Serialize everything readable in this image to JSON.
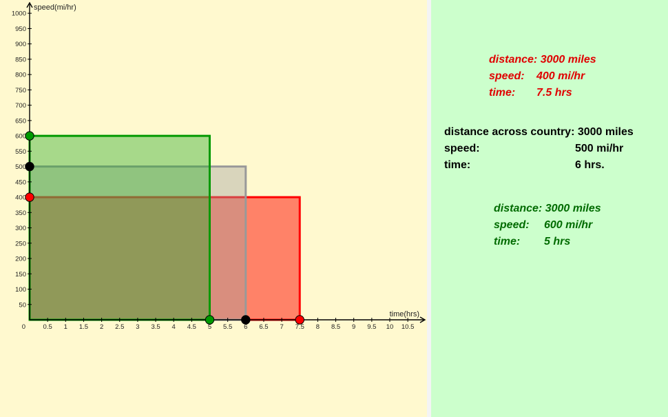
{
  "colors": {
    "graph_background": "#fff9cf",
    "info_background": "#ccffcc",
    "green": "#009900",
    "gray": "#999999",
    "red": "#ff0000",
    "black": "#000000"
  },
  "chart_data": {
    "type": "area",
    "xlabel": "time(hrs)",
    "ylabel": "speed(mi/hr)",
    "xlim": [
      0,
      11
    ],
    "ylim": [
      0,
      1000
    ],
    "x_ticks": [
      0.5,
      1,
      1.5,
      2,
      2.5,
      3,
      3.5,
      4,
      4.5,
      5,
      5.5,
      6,
      6.5,
      7,
      7.5,
      8,
      8.5,
      9,
      9.5,
      10,
      10.5
    ],
    "x_tick_labels": [
      "0.5",
      "1",
      "1.5",
      "2",
      "2.5",
      "3",
      "3.5",
      "4",
      "4.5",
      "5",
      "5.5",
      "6",
      "6.5",
      "7",
      "7.5",
      "8",
      "8.5",
      "9",
      "9.5",
      "10",
      "10.5"
    ],
    "origin_label": "0",
    "y_ticks": [
      50,
      100,
      150,
      200,
      250,
      300,
      350,
      400,
      450,
      500,
      550,
      600,
      650,
      700,
      750,
      800,
      850,
      900,
      950,
      1000
    ],
    "y_tick_labels": [
      "50",
      "100",
      "150",
      "200",
      "250",
      "300",
      "350",
      "400",
      "450",
      "500",
      "550",
      "600",
      "650",
      "700",
      "750",
      "800",
      "850",
      "900",
      "950",
      "1000"
    ],
    "rectangles": [
      {
        "time": 7.5,
        "speed": 400,
        "color": "#ff0000",
        "fill": "#ff5a46",
        "fill_opacity": 0.75,
        "point_color": "#ff0000"
      },
      {
        "time": 6,
        "speed": 500,
        "color": "#999999",
        "fill": "#a0a0a0",
        "fill_opacity": 0.4,
        "point_color": "#000000"
      },
      {
        "time": 5,
        "speed": 600,
        "color": "#009900",
        "fill": "#22aa22",
        "fill_opacity": 0.4,
        "point_color": "#009900"
      }
    ]
  },
  "info": {
    "red": [
      {
        "label": "distance: 3000 miles",
        "value": ""
      },
      {
        "label": "speed:",
        "value": "400 mi/hr"
      },
      {
        "label": "time:",
        "value": "7.5 hrs"
      }
    ],
    "black": [
      {
        "label": "distance across country: 3000 miles",
        "value": ""
      },
      {
        "label": "speed:",
        "value": "500 mi/hr"
      },
      {
        "label": "time:",
        "value": "6 hrs."
      }
    ],
    "green": [
      {
        "label": "distance: 3000 miles",
        "value": ""
      },
      {
        "label": "speed:",
        "value": "600 mi/hr"
      },
      {
        "label": "time:",
        "value": "5 hrs"
      }
    ]
  }
}
